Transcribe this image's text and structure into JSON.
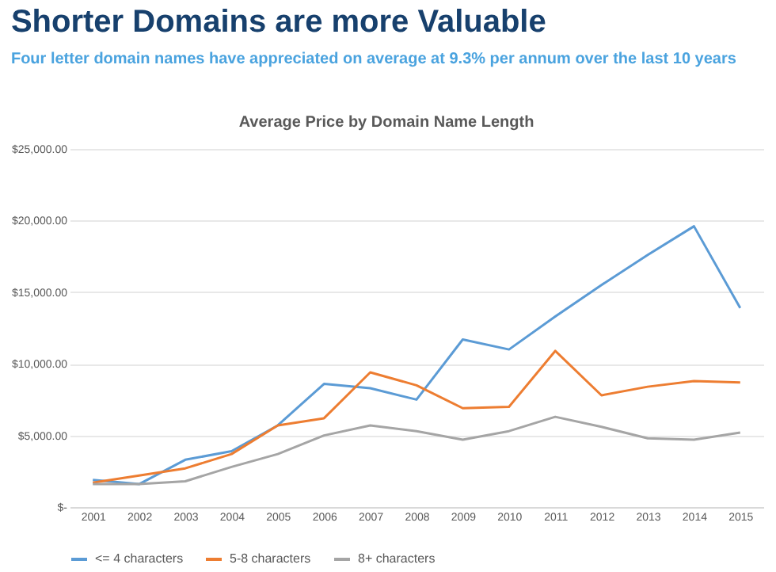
{
  "chart_data": {
    "type": "line",
    "title": "Shorter Domains are more Valuable",
    "subtitle": "Four letter domain names have appreciated on average at 9.3% per annum over the last 10 years",
    "annotations": [
      "Average Price by Domain Name Length"
    ],
    "categories": [
      "2001",
      "2002",
      "2003",
      "2004",
      "2005",
      "2006",
      "2007",
      "2008",
      "2009",
      "2010",
      "2011",
      "2012",
      "2013",
      "2014",
      "2015"
    ],
    "series": [
      {
        "name": "<= 4 characters",
        "color": "#5b9bd5",
        "values": [
          1900,
          1600,
          3300,
          3900,
          5700,
          8600,
          8300,
          7500,
          11700,
          11000,
          13300,
          15500,
          17600,
          19600,
          13900
        ]
      },
      {
        "name": "5-8 characters",
        "color": "#ed7d31",
        "values": [
          1700,
          2200,
          2700,
          3700,
          5700,
          6200,
          9400,
          8500,
          6900,
          7000,
          10900,
          7800,
          8400,
          8800,
          8700
        ]
      },
      {
        "name": "8+ characters",
        "color": "#a5a5a5",
        "values": [
          1600,
          1600,
          1800,
          2800,
          3700,
          5000,
          5700,
          5300,
          4700,
          5300,
          6300,
          5600,
          4800,
          4700,
          5200
        ]
      }
    ],
    "ylim": [
      0,
      25000
    ],
    "yticks": [
      {
        "value": 0,
        "label": "$-"
      },
      {
        "value": 5000,
        "label": "$5,000.00"
      },
      {
        "value": 10000,
        "label": "$10,000.00"
      },
      {
        "value": 15000,
        "label": "$15,000.00"
      },
      {
        "value": 20000,
        "label": "$20,000.00"
      },
      {
        "value": 25000,
        "label": "$25,000.00"
      }
    ],
    "grid": "y",
    "legend": "bottom",
    "marker": "none",
    "line_style": "solid"
  }
}
